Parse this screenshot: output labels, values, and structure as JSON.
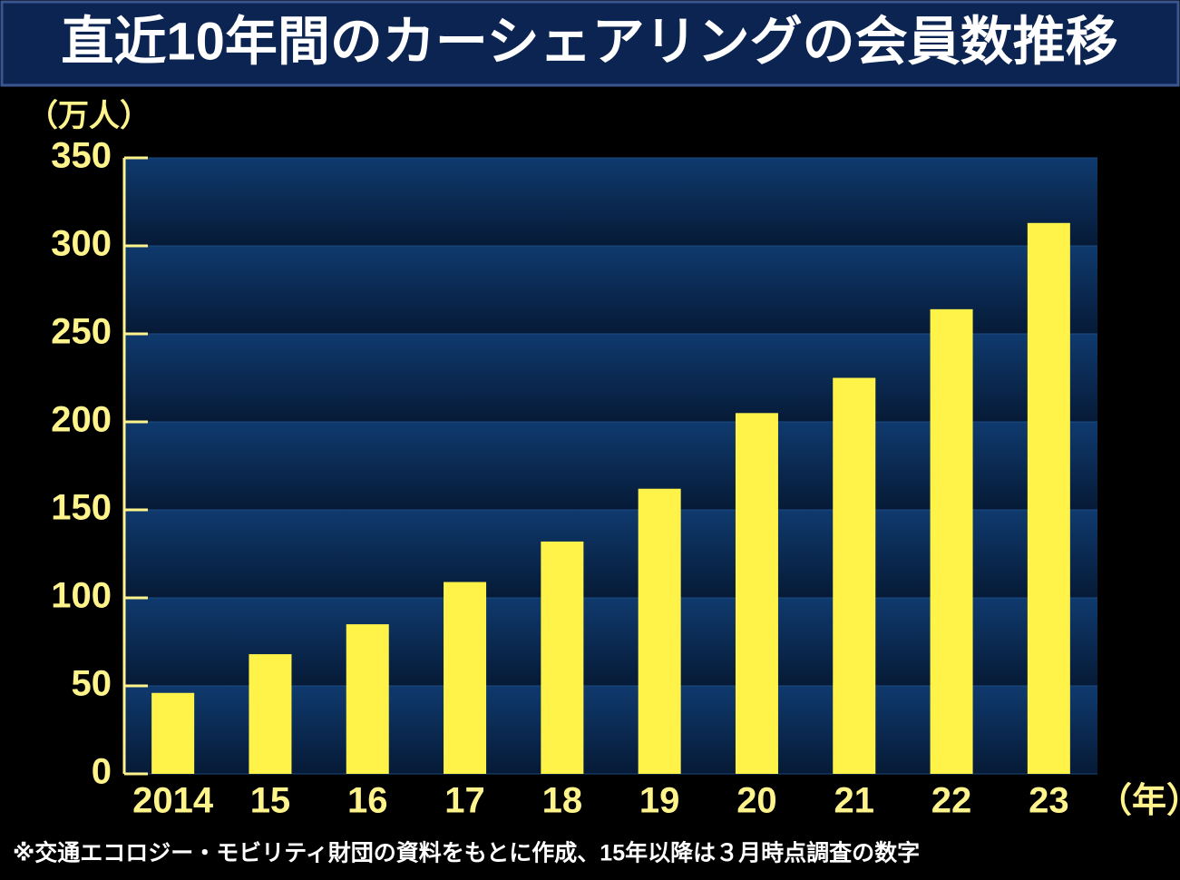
{
  "chart_data": {
    "type": "bar",
    "title": "直近10年間のカーシェアリングの会員数推移",
    "y_label": "（万人）",
    "x_label": "（年）",
    "note": "※交通エコロジー・モビリティ財団の資料をもとに作成、15年以降は３月時点調査の数字",
    "categories": [
      "2014",
      "15",
      "16",
      "17",
      "18",
      "19",
      "20",
      "21",
      "22",
      "23"
    ],
    "values": [
      46,
      68,
      85,
      109,
      132,
      162,
      205,
      225,
      264,
      313
    ],
    "color": "#fff34a",
    "ylim": [
      0,
      350
    ],
    "yticks": [
      0,
      50,
      100,
      150,
      200,
      250,
      300,
      350
    ],
    "grid": true
  }
}
